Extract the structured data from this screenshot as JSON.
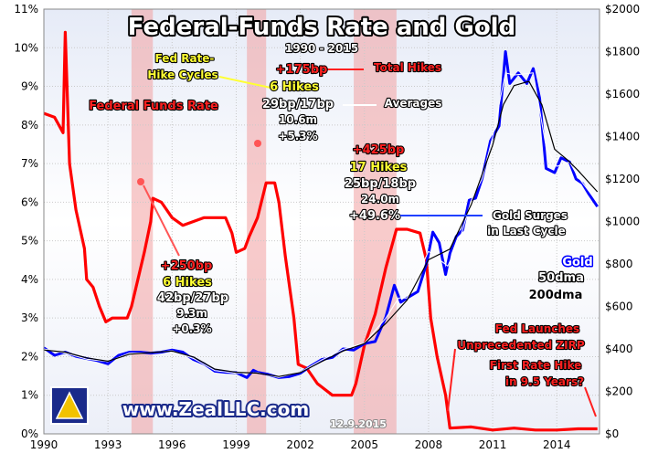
{
  "chart_data": {
    "type": "line",
    "title": "Federal-Funds Rate and Gold",
    "subtitle": "1990 - 2015",
    "watermark": "www.ZealLLC.com",
    "date_stamp": "12.9.2015",
    "x_ticks": [
      "1990",
      "1993",
      "1996",
      "1999",
      "2002",
      "2005",
      "2008",
      "2011",
      "2014"
    ],
    "x_range": [
      1990,
      2016
    ],
    "y_left": {
      "range": [
        0,
        11
      ],
      "ticks": [
        "0%",
        "1%",
        "2%",
        "3%",
        "4%",
        "5%",
        "6%",
        "7%",
        "8%",
        "9%",
        "10%",
        "11%"
      ]
    },
    "y_right": {
      "range": [
        0,
        2000
      ],
      "ticks": [
        "$0",
        "$200",
        "$400",
        "$600",
        "$800",
        "$1000",
        "$1200",
        "$1400",
        "$1600",
        "$1800",
        "$2000"
      ]
    },
    "hike_cycles": [
      [
        1994.1,
        1995.1
      ],
      [
        1999.5,
        2000.4
      ],
      [
        2004.5,
        2006.5
      ]
    ],
    "series": [
      {
        "name": "Federal Funds Rate",
        "axis": "left",
        "color": "#ff0000",
        "points": [
          [
            1990.0,
            8.3
          ],
          [
            1990.5,
            8.2
          ],
          [
            1990.9,
            7.8
          ],
          [
            1991.0,
            10.4
          ],
          [
            1991.2,
            7.0
          ],
          [
            1991.5,
            5.8
          ],
          [
            1991.9,
            4.8
          ],
          [
            1992.0,
            4.0
          ],
          [
            1992.3,
            3.8
          ],
          [
            1992.6,
            3.3
          ],
          [
            1992.9,
            2.9
          ],
          [
            1993.2,
            3.0
          ],
          [
            1993.6,
            3.0
          ],
          [
            1993.9,
            3.0
          ],
          [
            1994.1,
            3.3
          ],
          [
            1994.4,
            4.0
          ],
          [
            1994.7,
            4.7
          ],
          [
            1995.0,
            5.5
          ],
          [
            1995.1,
            6.1
          ],
          [
            1995.5,
            6.0
          ],
          [
            1996.0,
            5.6
          ],
          [
            1996.5,
            5.4
          ],
          [
            1997.0,
            5.5
          ],
          [
            1997.5,
            5.6
          ],
          [
            1998.0,
            5.6
          ],
          [
            1998.5,
            5.6
          ],
          [
            1998.8,
            5.2
          ],
          [
            1999.0,
            4.7
          ],
          [
            1999.4,
            4.8
          ],
          [
            1999.6,
            5.1
          ],
          [
            2000.0,
            5.6
          ],
          [
            2000.4,
            6.5
          ],
          [
            2000.8,
            6.5
          ],
          [
            2001.0,
            6.0
          ],
          [
            2001.3,
            4.6
          ],
          [
            2001.7,
            3.0
          ],
          [
            2001.9,
            1.8
          ],
          [
            2002.3,
            1.7
          ],
          [
            2002.8,
            1.3
          ],
          [
            2003.5,
            1.0
          ],
          [
            2004.4,
            1.0
          ],
          [
            2004.6,
            1.3
          ],
          [
            2005.0,
            2.3
          ],
          [
            2005.5,
            3.1
          ],
          [
            2006.0,
            4.3
          ],
          [
            2006.5,
            5.3
          ],
          [
            2007.0,
            5.3
          ],
          [
            2007.6,
            5.2
          ],
          [
            2007.9,
            4.5
          ],
          [
            2008.1,
            3.0
          ],
          [
            2008.4,
            2.0
          ],
          [
            2008.8,
            1.0
          ],
          [
            2009.0,
            0.15
          ],
          [
            2010.0,
            0.18
          ],
          [
            2011.0,
            0.1
          ],
          [
            2012.0,
            0.15
          ],
          [
            2013.0,
            0.1
          ],
          [
            2014.0,
            0.1
          ],
          [
            2015.0,
            0.13
          ],
          [
            2015.9,
            0.13
          ]
        ]
      },
      {
        "name": "Gold",
        "axis": "right",
        "color": "#0000ff",
        "points": [
          [
            1990.0,
            405
          ],
          [
            1990.5,
            370
          ],
          [
            1991.0,
            385
          ],
          [
            1991.5,
            365
          ],
          [
            1992.0,
            355
          ],
          [
            1992.5,
            345
          ],
          [
            1993.0,
            330
          ],
          [
            1993.5,
            370
          ],
          [
            1994.0,
            385
          ],
          [
            1994.5,
            385
          ],
          [
            1995.0,
            380
          ],
          [
            1995.5,
            385
          ],
          [
            1996.0,
            395
          ],
          [
            1996.5,
            385
          ],
          [
            1997.0,
            350
          ],
          [
            1997.5,
            330
          ],
          [
            1998.0,
            295
          ],
          [
            1998.5,
            290
          ],
          [
            1999.0,
            288
          ],
          [
            1999.5,
            265
          ],
          [
            1999.8,
            300
          ],
          [
            2000.0,
            290
          ],
          [
            2000.5,
            280
          ],
          [
            2001.0,
            265
          ],
          [
            2001.5,
            270
          ],
          [
            2002.0,
            285
          ],
          [
            2002.5,
            320
          ],
          [
            2003.0,
            350
          ],
          [
            2003.5,
            360
          ],
          [
            2004.0,
            400
          ],
          [
            2004.5,
            395
          ],
          [
            2005.0,
            425
          ],
          [
            2005.5,
            435
          ],
          [
            2006.0,
            550
          ],
          [
            2006.4,
            700
          ],
          [
            2006.7,
            620
          ],
          [
            2007.0,
            640
          ],
          [
            2007.5,
            670
          ],
          [
            2007.9,
            800
          ],
          [
            2008.2,
            950
          ],
          [
            2008.5,
            900
          ],
          [
            2008.8,
            750
          ],
          [
            2009.0,
            850
          ],
          [
            2009.3,
            930
          ],
          [
            2009.6,
            960
          ],
          [
            2009.9,
            1100
          ],
          [
            2010.2,
            1110
          ],
          [
            2010.5,
            1200
          ],
          [
            2010.9,
            1380
          ],
          [
            2011.3,
            1450
          ],
          [
            2011.6,
            1800
          ],
          [
            2011.8,
            1650
          ],
          [
            2012.2,
            1700
          ],
          [
            2012.6,
            1650
          ],
          [
            2012.9,
            1720
          ],
          [
            2013.2,
            1580
          ],
          [
            2013.5,
            1250
          ],
          [
            2013.9,
            1230
          ],
          [
            2014.2,
            1300
          ],
          [
            2014.6,
            1280
          ],
          [
            2014.9,
            1200
          ],
          [
            2015.2,
            1180
          ],
          [
            2015.5,
            1130
          ],
          [
            2015.9,
            1070
          ]
        ]
      },
      {
        "name": "50dma",
        "axis": "right",
        "color": "#ffffff",
        "points": [
          [
            1990.0,
            400
          ],
          [
            1991.0,
            380
          ],
          [
            1992.0,
            352
          ],
          [
            1993.0,
            340
          ],
          [
            1994.0,
            380
          ],
          [
            1995.0,
            382
          ],
          [
            1996.0,
            392
          ],
          [
            1997.0,
            355
          ],
          [
            1998.0,
            298
          ],
          [
            1999.0,
            285
          ],
          [
            2000.0,
            288
          ],
          [
            2001.0,
            266
          ],
          [
            2002.0,
            290
          ],
          [
            2003.0,
            348
          ],
          [
            2004.0,
            398
          ],
          [
            2005.0,
            428
          ],
          [
            2006.0,
            545
          ],
          [
            2006.6,
            640
          ],
          [
            2007.0,
            640
          ],
          [
            2008.0,
            860
          ],
          [
            2008.9,
            790
          ],
          [
            2009.5,
            930
          ],
          [
            2010.0,
            1100
          ],
          [
            2010.5,
            1200
          ],
          [
            2011.0,
            1400
          ],
          [
            2011.6,
            1700
          ],
          [
            2012.0,
            1690
          ],
          [
            2012.9,
            1700
          ],
          [
            2013.5,
            1350
          ],
          [
            2014.0,
            1260
          ],
          [
            2014.6,
            1280
          ],
          [
            2015.0,
            1210
          ],
          [
            2015.9,
            1090
          ]
        ]
      },
      {
        "name": "200dma",
        "axis": "right",
        "color": "#000000",
        "points": [
          [
            1990.0,
            395
          ],
          [
            1991.0,
            385
          ],
          [
            1992.0,
            358
          ],
          [
            1993.0,
            342
          ],
          [
            1994.0,
            375
          ],
          [
            1995.0,
            383
          ],
          [
            1996.0,
            390
          ],
          [
            1997.0,
            362
          ],
          [
            1998.0,
            305
          ],
          [
            1999.0,
            290
          ],
          [
            2000.0,
            286
          ],
          [
            2001.0,
            270
          ],
          [
            2002.0,
            288
          ],
          [
            2003.0,
            340
          ],
          [
            2004.0,
            390
          ],
          [
            2005.0,
            425
          ],
          [
            2006.0,
            520
          ],
          [
            2007.0,
            630
          ],
          [
            2008.0,
            820
          ],
          [
            2009.0,
            870
          ],
          [
            2010.0,
            1080
          ],
          [
            2011.0,
            1360
          ],
          [
            2011.5,
            1550
          ],
          [
            2012.0,
            1640
          ],
          [
            2012.7,
            1660
          ],
          [
            2013.3,
            1550
          ],
          [
            2013.9,
            1340
          ],
          [
            2014.5,
            1290
          ],
          [
            2015.0,
            1240
          ],
          [
            2015.9,
            1140
          ]
        ]
      }
    ],
    "annotations": {
      "fed_label": "Federal Funds Rate",
      "cycle_label_1": "Fed Rate-",
      "cycle_label_2": "Hike Cycles",
      "total_hikes": "Total Hikes",
      "averages": "Averages",
      "avg_bp": "+175bp",
      "avg_hikes": "6 Hikes",
      "avg_size": "29bp/17bp",
      "avg_months": "10.6m",
      "avg_gold": "+5.3%",
      "c1_bp": "+250bp",
      "c1_hikes": "6 Hikes",
      "c1_size": "42bp/27bp",
      "c1_months": "9.3m",
      "c1_gold": "+0.3%",
      "c3_bp": "+425bp",
      "c3_hikes": "17 Hikes",
      "c3_size": "25bp/18bp",
      "c3_months": "24.0m",
      "c3_gold": "+49.6%",
      "gold_surge_1": "Gold Surges",
      "gold_surge_2": "in Last Cycle",
      "zirp_1": "Fed Launches",
      "zirp_2": "Unprecedented ZIRP",
      "first_hike_1": "First Rate Hike",
      "first_hike_2": "in 9.5 Years?",
      "legend_gold": "Gold",
      "legend_50": "50dma",
      "legend_200": "200dma"
    }
  }
}
